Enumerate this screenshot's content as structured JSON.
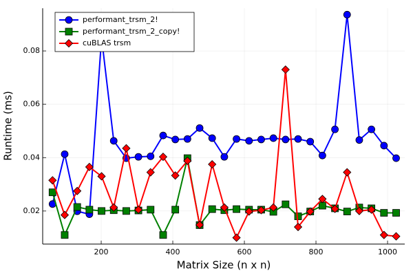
{
  "chart_data": {
    "type": "line",
    "x_label": "Matrix Size (n x n)",
    "y_label": "Runtime (ms)",
    "x": [
      64,
      98,
      133,
      167,
      201,
      235,
      270,
      304,
      338,
      373,
      407,
      441,
      475,
      510,
      544,
      578,
      613,
      647,
      681,
      715,
      750,
      784,
      818,
      853,
      887,
      921,
      955,
      990,
      1024
    ],
    "series": [
      {
        "name": "performant_trsm_2!",
        "color": "#0000ff",
        "marker": "circle",
        "values": [
          0.0226,
          0.0413,
          0.0199,
          0.0188,
          0.085,
          0.0463,
          0.0398,
          0.0403,
          0.0405,
          0.0483,
          0.0468,
          0.047,
          0.0511,
          0.0473,
          0.0403,
          0.047,
          0.0463,
          0.0468,
          0.0473,
          0.0468,
          0.047,
          0.046,
          0.0408,
          0.0506,
          0.0936,
          0.0466,
          0.0506,
          0.0445,
          0.0398
        ]
      },
      {
        "name": "performant_trsm_2_copy!",
        "color": "#008000",
        "marker": "square",
        "values": [
          0.027,
          0.011,
          0.0215,
          0.0205,
          0.02,
          0.0203,
          0.02,
          0.0202,
          0.0205,
          0.011,
          0.0205,
          0.0398,
          0.0147,
          0.0207,
          0.0203,
          0.0207,
          0.0205,
          0.0205,
          0.0197,
          0.0225,
          0.018,
          0.0198,
          0.022,
          0.021,
          0.0198,
          0.0213,
          0.021,
          0.0193,
          0.0193
        ]
      },
      {
        "name": "cuBLAS trsm",
        "color": "#ff0000",
        "marker": "diamond",
        "values": [
          0.0315,
          0.0185,
          0.0275,
          0.0365,
          0.033,
          0.0213,
          0.0435,
          0.0205,
          0.0345,
          0.0403,
          0.0333,
          0.0388,
          0.0148,
          0.0375,
          0.0213,
          0.01,
          0.0198,
          0.0203,
          0.0213,
          0.073,
          0.014,
          0.0198,
          0.0245,
          0.0208,
          0.0345,
          0.02,
          0.0205,
          0.011,
          0.0105
        ]
      }
    ],
    "xlim": [
      36.5,
      1048
    ],
    "xticks": [
      200,
      400,
      600,
      800,
      1000
    ],
    "ylim": [
      0.0076,
      0.096
    ],
    "yticks": [
      0.02,
      0.04,
      0.06,
      0.08
    ],
    "grid": true,
    "legend": "top-left"
  }
}
